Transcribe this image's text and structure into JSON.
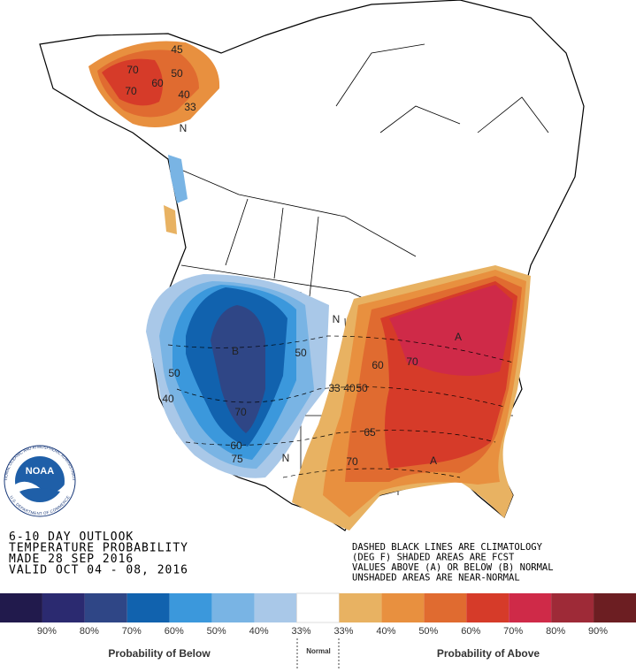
{
  "title_block": {
    "lines": [
      "6-10 DAY OUTLOOK",
      "TEMPERATURE PROBABILITY",
      "MADE  28 SEP 2016",
      "VALID  OCT 04 - 08, 2016"
    ]
  },
  "notes": {
    "lines": [
      "DASHED BLACK LINES ARE CLIMATOLOGY",
      "(DEG F) SHADED AREAS ARE FCST",
      "VALUES ABOVE (A) OR BELOW (B) NORMAL",
      "UNSHADED AREAS ARE NEAR-NORMAL"
    ]
  },
  "logo": {
    "name": "NOAA",
    "ring_top": "NATIONAL OCEANIC AND ATMOSPHERIC ADMINISTRATION",
    "ring_bottom": "U.S. DEPARTMENT OF COMMERCE"
  },
  "map_labels": [
    "45",
    "50",
    "70",
    "60",
    "70",
    "40",
    "33",
    "N",
    "B",
    "50",
    "40",
    "70",
    "60",
    "75",
    "50",
    "N",
    "N",
    "A",
    "A",
    "60",
    "70",
    "33",
    "40",
    "50",
    "65",
    "70"
  ],
  "legend": {
    "colors": [
      "#211a4c",
      "#2b2a70",
      "#2f4686",
      "#1162ae",
      "#3b98dc",
      "#79b4e4",
      "#a9c8e8",
      "#ffffff",
      "#e8b262",
      "#e8903f",
      "#e06b30",
      "#d63b29",
      "#cf2a48",
      "#9e2a37",
      "#6c1e22"
    ],
    "labels": [
      "90%",
      "80%",
      "70%",
      "60%",
      "50%",
      "40%",
      "33%",
      "33%",
      "40%",
      "50%",
      "60%",
      "70%",
      "80%",
      "90%"
    ],
    "below": "Probability of Below",
    "normal": "Normal",
    "above": "Probability of Above"
  }
}
